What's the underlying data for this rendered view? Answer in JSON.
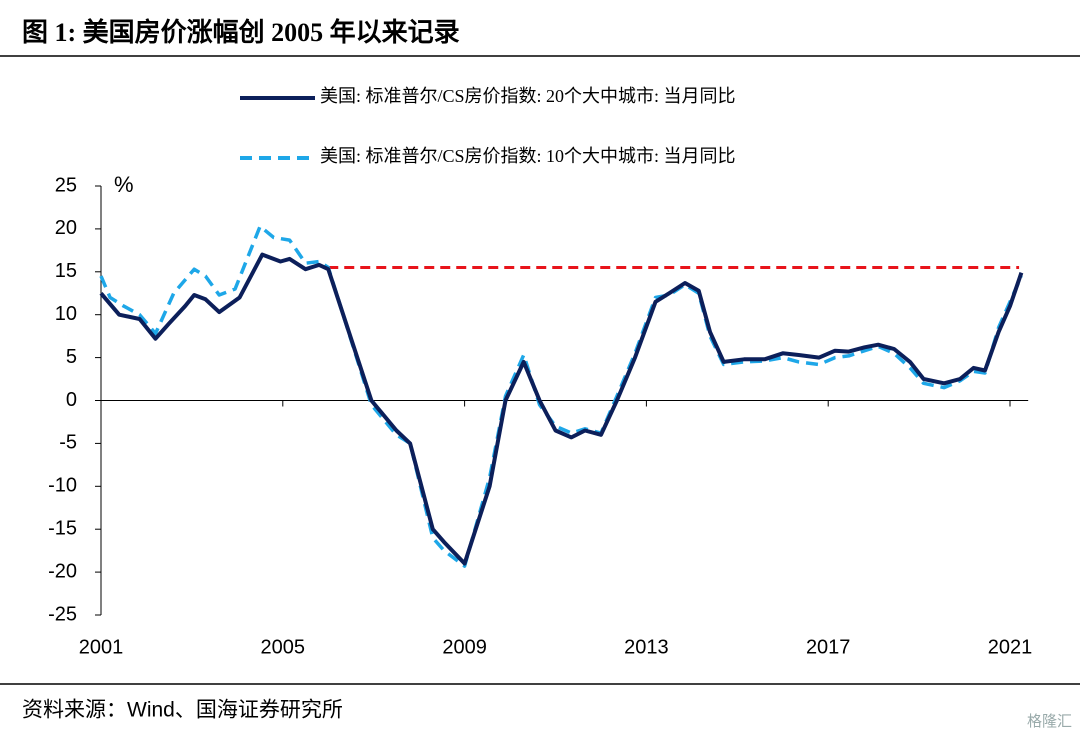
{
  "chart_data": {
    "type": "line",
    "title": "图 1:  美国房价涨幅创 2005 年以来记录",
    "y_unit": "%",
    "xlim": [
      2001,
      2021.4
    ],
    "xticks": [
      2001,
      2005,
      2009,
      2013,
      2017,
      2021
    ],
    "ylim": [
      -25,
      25
    ],
    "yticks": [
      25,
      20,
      15,
      10,
      5,
      0,
      -5,
      -10,
      -15,
      -20,
      -25
    ],
    "series": [
      {
        "name": "美国: 标准普尔/CS房价指数: 20个大中城市: 当月同比",
        "color": "#0c1f5a",
        "dash": false,
        "x": [
          2001.0,
          2001.4,
          2001.85,
          2002.2,
          2002.5,
          2002.85,
          2003.05,
          2003.3,
          2003.6,
          2004.05,
          2004.55,
          2004.95,
          2005.15,
          2005.5,
          2005.8,
          2006.0,
          2006.95,
          2007.5,
          2007.8,
          2008.3,
          2008.55,
          2009.0,
          2009.55,
          2009.9,
          2010.3,
          2010.65,
          2011.0,
          2011.35,
          2011.65,
          2012.0,
          2012.35,
          2012.75,
          2013.2,
          2013.5,
          2013.85,
          2014.15,
          2014.4,
          2014.7,
          2015.15,
          2015.6,
          2016.0,
          2016.35,
          2016.8,
          2017.15,
          2017.45,
          2017.8,
          2018.1,
          2018.45,
          2018.8,
          2019.1,
          2019.55,
          2019.9,
          2020.2,
          2020.45,
          2020.75,
          2021.0,
          2021.25
        ],
        "values": [
          12.5,
          10,
          9.5,
          7.2,
          9,
          11,
          12.3,
          11.8,
          10.3,
          12,
          17,
          16.2,
          16.5,
          15.3,
          15.8,
          15.3,
          0,
          -3.5,
          -5,
          -15,
          -16.5,
          -19,
          -10,
          0,
          4.5,
          0,
          -3.5,
          -4.3,
          -3.5,
          -4,
          0,
          5,
          11.5,
          12.5,
          13.7,
          12.8,
          8,
          4.5,
          4.8,
          4.8,
          5.5,
          5.3,
          5,
          5.8,
          5.7,
          6.2,
          6.5,
          6,
          4.5,
          2.5,
          2,
          2.5,
          3.8,
          3.5,
          8,
          11,
          14.9
        ]
      },
      {
        "name": "美国: 标准普尔/CS房价指数: 10个大中城市: 当月同比",
        "color": "#1ea7e8",
        "dash": true,
        "x": [
          2001.0,
          2001.2,
          2001.5,
          2001.85,
          2002.2,
          2002.6,
          2003.05,
          2003.3,
          2003.6,
          2003.95,
          2004.5,
          2004.8,
          2005.15,
          2005.5,
          2005.8,
          2006.0,
          2006.95,
          2007.5,
          2007.8,
          2008.3,
          2008.55,
          2009.0,
          2009.55,
          2009.9,
          2010.3,
          2010.65,
          2011.0,
          2011.35,
          2011.65,
          2012.0,
          2012.35,
          2012.75,
          2013.2,
          2013.5,
          2013.85,
          2014.15,
          2014.4,
          2014.7,
          2015.15,
          2015.6,
          2016.0,
          2016.35,
          2016.8,
          2017.15,
          2017.45,
          2017.8,
          2018.1,
          2018.45,
          2018.8,
          2019.1,
          2019.55,
          2019.9,
          2020.2,
          2020.45,
          2020.75,
          2021.0,
          2021.25
        ],
        "values": [
          14.5,
          12,
          11,
          10,
          7.8,
          12.5,
          15.3,
          14.5,
          12.3,
          13,
          20.3,
          19,
          18.7,
          16,
          16.2,
          15.5,
          -0.5,
          -4,
          -5,
          -16,
          -17.5,
          -19.3,
          -9,
          0.5,
          5.3,
          -0.5,
          -3,
          -3.8,
          -3.3,
          -3.8,
          0.5,
          5.5,
          12,
          12.3,
          13.5,
          12.5,
          7.5,
          4.2,
          4.5,
          4.6,
          5,
          4.5,
          4.2,
          5,
          5.2,
          5.8,
          6.3,
          5.5,
          3.8,
          2,
          1.5,
          2.3,
          3.4,
          3.2,
          8.5,
          11.5,
          14.5
        ]
      }
    ],
    "reference_line": {
      "y": 15.5,
      "x": [
        2006.0,
        2021.2
      ],
      "color": "#e8141b"
    }
  },
  "footer": {
    "source": "资料来源：Wind、国海证券研究所",
    "watermark": "格隆汇"
  }
}
